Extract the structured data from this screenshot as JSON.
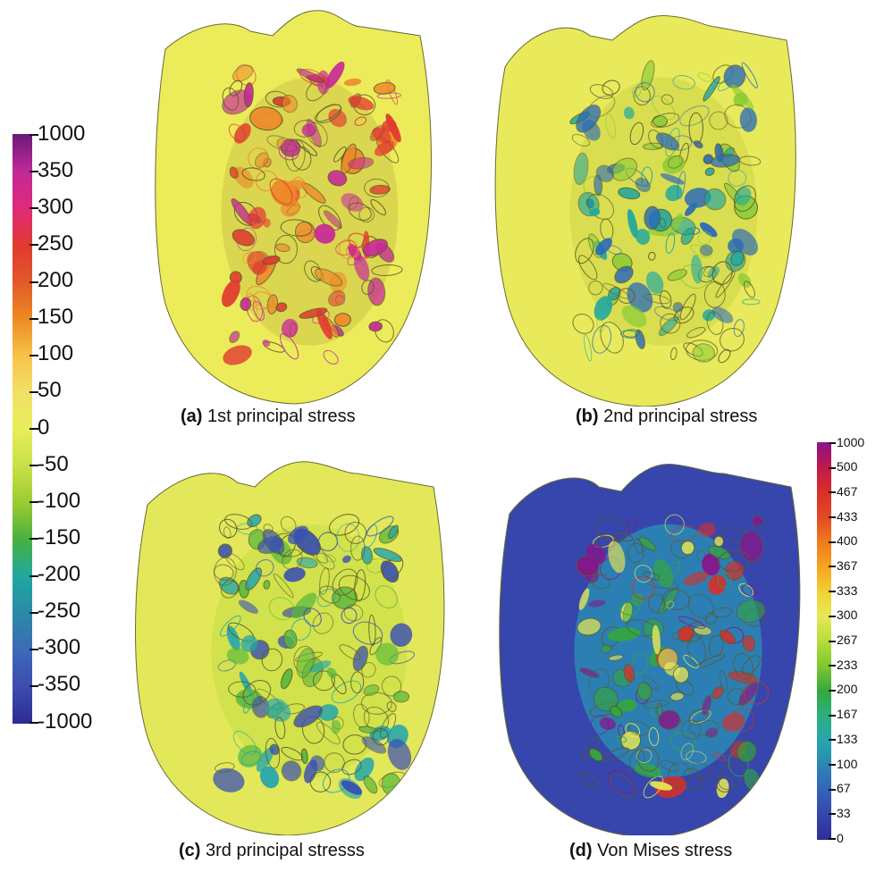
{
  "captions": {
    "a": {
      "tag": "(a)",
      "text": "1st principal stress"
    },
    "b": {
      "tag": "(b)",
      "text": "2nd principal stress"
    },
    "c": {
      "tag": "(c)",
      "text": "3rd principal stresss"
    },
    "d": {
      "tag": "(d)",
      "text": "Von Mises stress"
    }
  },
  "colorbar_principal": {
    "labels": [
      "1000",
      "350",
      "300",
      "250",
      "200",
      "150",
      "100",
      "50",
      "0",
      "-50",
      "-100",
      "-150",
      "-200",
      "-250",
      "-300",
      "-350",
      "-1000"
    ],
    "colors": [
      "#6a1a7a",
      "#c02898",
      "#e02a7a",
      "#e03a30",
      "#e2582a",
      "#ec8a22",
      "#f6c24a",
      "#f2e066",
      "#e8ee5a",
      "#c8e048",
      "#9ccc30",
      "#46b040",
      "#20a8a0",
      "#2a8aa6",
      "#3c6ab8",
      "#3c4cb0",
      "#2c2c90"
    ]
  },
  "colorbar_vonmises": {
    "labels": [
      "1000",
      "500",
      "467",
      "433",
      "400",
      "367",
      "333",
      "300",
      "267",
      "233",
      "200",
      "167",
      "133",
      "100",
      "67",
      "33",
      "0"
    ],
    "colors": [
      "#8a148a",
      "#c0184a",
      "#d8302a",
      "#e24a22",
      "#ee7a1e",
      "#f4a41e",
      "#f2d034",
      "#e8e856",
      "#b6dc3a",
      "#7ec832",
      "#34a83c",
      "#2cb07e",
      "#26a6ac",
      "#2c86b4",
      "#3462b8",
      "#3646ac",
      "#2e2e98"
    ]
  },
  "heart_colors": {
    "a": {
      "base": "#ecec5a",
      "inner": "#d8d24e",
      "accents": [
        "#ee8a2a",
        "#e03a30",
        "#c82a98"
      ]
    },
    "b": {
      "base": "#e8ea5c",
      "inner": "#d6dc4e",
      "accents": [
        "#8ccc38",
        "#2a6ab8",
        "#20a8a0"
      ]
    },
    "c": {
      "base": "#e2e85a",
      "inner": "#cfe04a",
      "accents": [
        "#3a50b4",
        "#26a6ac",
        "#58b83c"
      ]
    },
    "d": {
      "base": "#3646ac",
      "inner": "#2a8ab4",
      "accents": [
        "#34a83c",
        "#e8e856",
        "#d8302a",
        "#8a148a"
      ]
    }
  }
}
